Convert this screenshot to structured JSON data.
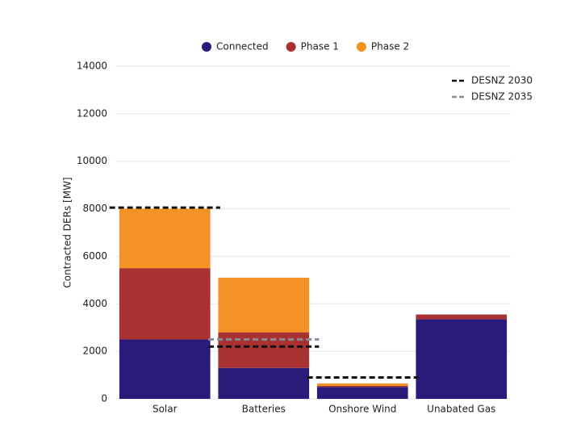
{
  "chart_data": {
    "type": "stacked_bar",
    "y_label": "Contracted DERs [MW]",
    "categories": [
      "Solar",
      "Batteries",
      "Onshore Wind",
      "Unabated Gas"
    ],
    "series": [
      {
        "name": "Connected",
        "color": "#2b1a7a",
        "values": [
          2500,
          1300,
          500,
          3350
        ]
      },
      {
        "name": "Phase 1",
        "color": "#a83232",
        "values": [
          3000,
          1500,
          50,
          200
        ]
      },
      {
        "name": "Phase 2",
        "color": "#f39325",
        "values": [
          2500,
          2300,
          100,
          0
        ]
      }
    ],
    "reference_lines": [
      {
        "name": "DESNZ 2030",
        "color": "#111111",
        "values": [
          8050,
          2200,
          900,
          null
        ]
      },
      {
        "name": "DESNZ 2035",
        "color": "#8a8a9a",
        "values": [
          null,
          2500,
          null,
          null
        ]
      }
    ],
    "ylim": [
      0,
      14000
    ],
    "yticks": [
      0,
      2000,
      4000,
      6000,
      8000,
      10000,
      12000,
      14000
    ],
    "grid": true
  }
}
